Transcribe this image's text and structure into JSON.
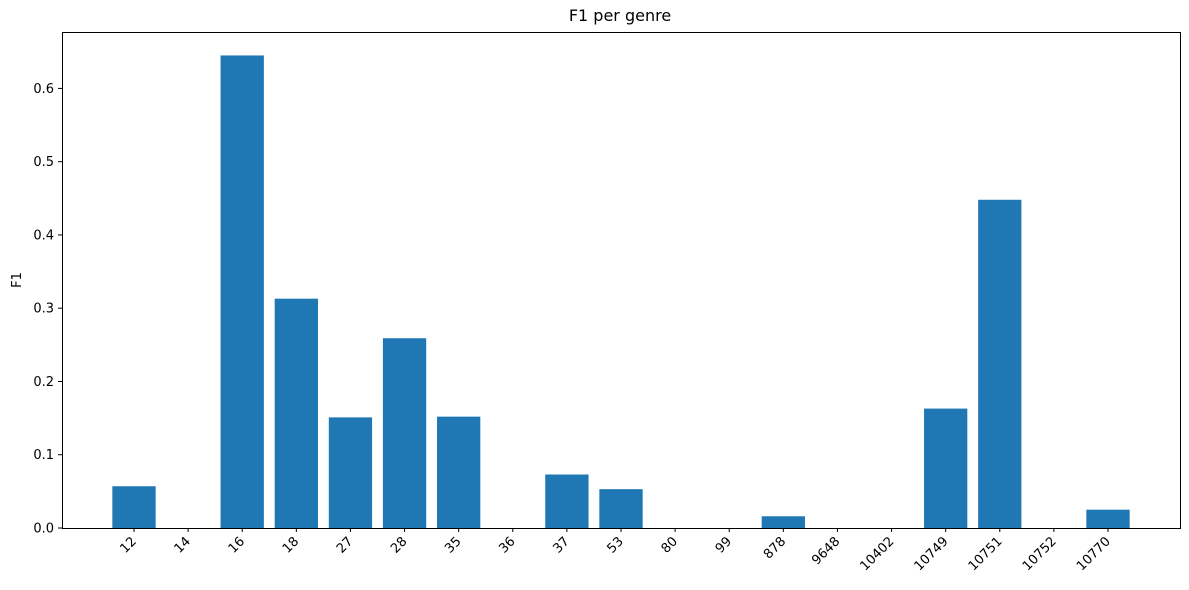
{
  "chart_data": {
    "type": "bar",
    "title": "F1 per genre",
    "xlabel": "",
    "ylabel": "F1",
    "categories": [
      "12",
      "14",
      "16",
      "18",
      "27",
      "28",
      "35",
      "36",
      "37",
      "53",
      "80",
      "99",
      "878",
      "9648",
      "10402",
      "10749",
      "10751",
      "10752",
      "10770"
    ],
    "values": [
      0.057,
      0.0,
      0.645,
      0.313,
      0.151,
      0.259,
      0.152,
      0.0,
      0.073,
      0.053,
      0.0,
      0.0,
      0.016,
      0.0,
      0.0,
      0.163,
      0.448,
      0.0,
      0.025
    ],
    "ylim": [
      0,
      0.677
    ],
    "yticks": [
      0.0,
      0.1,
      0.2,
      0.3,
      0.4,
      0.5,
      0.6
    ],
    "ytick_labels": [
      "0.0",
      "0.1",
      "0.2",
      "0.3",
      "0.4",
      "0.5",
      "0.6"
    ],
    "bar_color": "#1f77b4",
    "grid": false,
    "xtick_rotation": 45
  }
}
